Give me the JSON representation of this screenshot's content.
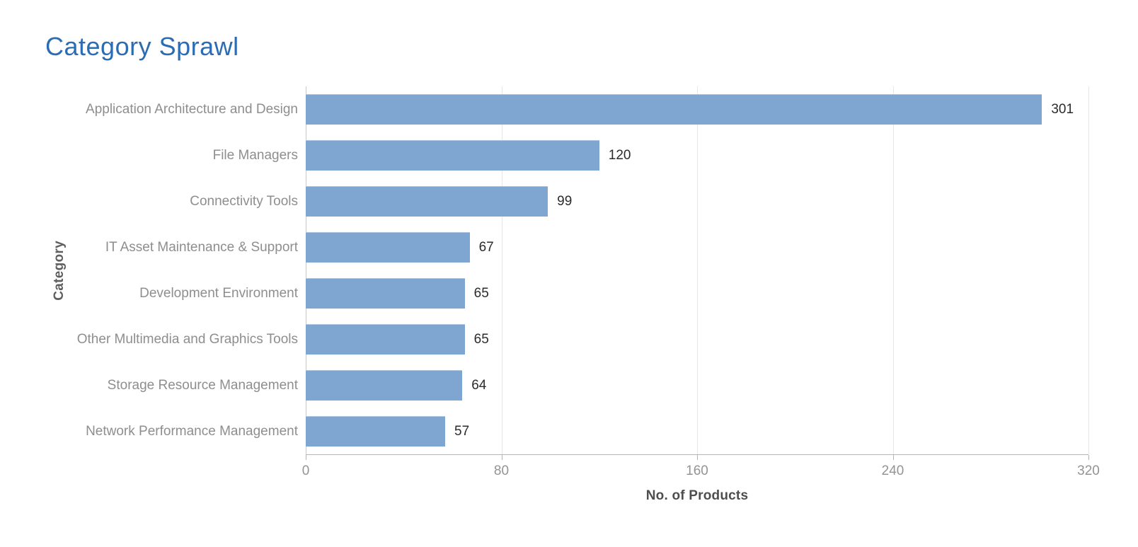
{
  "page": {
    "title": "Category Sprawl"
  },
  "chart_data": {
    "type": "bar",
    "orientation": "horizontal",
    "title": "Category Sprawl",
    "categories": [
      "Application Architecture and Design",
      "File Managers",
      "Connectivity Tools",
      "IT Asset Maintenance & Support",
      "Development Environment",
      "Other Multimedia and Graphics Tools",
      "Storage Resource Management",
      "Network Performance Management"
    ],
    "values": [
      301,
      120,
      99,
      67,
      65,
      65,
      64,
      57
    ],
    "xlabel": "No. of Products",
    "ylabel": "Category",
    "xlim": [
      0,
      320
    ],
    "xticks": [
      0,
      80,
      160,
      240,
      320
    ],
    "grid": true,
    "legend": "none",
    "colors": {
      "title": "#2b6cb3",
      "bar": "#7fa5d1",
      "value_label": "#2b2b2b",
      "category_label": "#8e8e8e",
      "tick_label": "#949494",
      "axis_title": "#4e4e4e",
      "gridline": "#e7e7e7",
      "axis_line": "#b5b5b5"
    }
  }
}
